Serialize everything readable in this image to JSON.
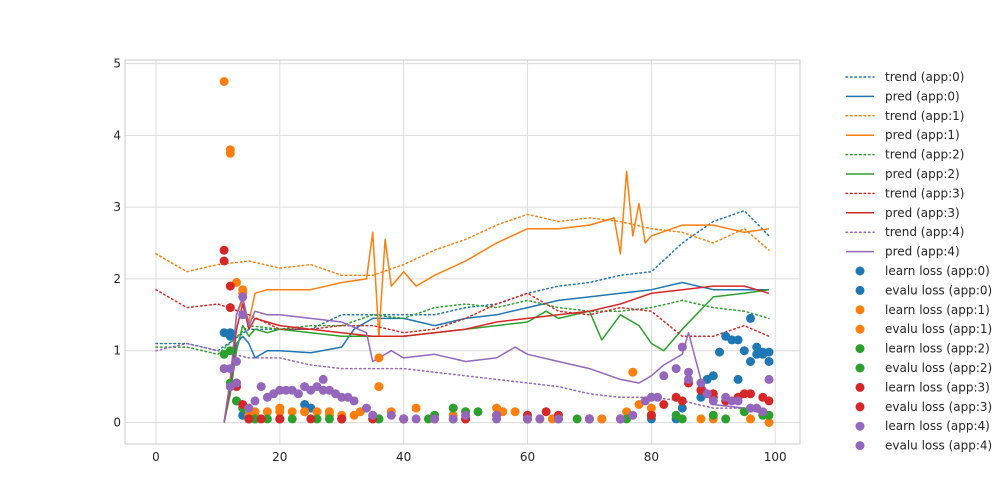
{
  "chart_data": {
    "type": "line",
    "title": "",
    "xlabel": "",
    "ylabel": "",
    "xlim": [
      -5,
      104
    ],
    "ylim": [
      -0.3,
      5.05
    ],
    "x_ticks": [
      0,
      20,
      40,
      60,
      80,
      100
    ],
    "y_ticks": [
      0,
      1,
      2,
      3,
      4,
      5
    ],
    "grid": true,
    "legend_position": "outside-right",
    "series": [
      {
        "name": "trend (app:0)",
        "kind": "line",
        "style": "dotted",
        "color": "#1f77b4",
        "x": [
          0,
          5,
          10,
          15,
          20,
          25,
          30,
          35,
          40,
          45,
          50,
          55,
          60,
          65,
          70,
          75,
          80,
          85,
          90,
          95,
          99
        ],
        "y": [
          1.1,
          1.1,
          1.0,
          1.3,
          1.3,
          1.3,
          1.5,
          1.5,
          1.5,
          1.5,
          1.6,
          1.65,
          1.8,
          1.9,
          1.95,
          2.05,
          2.1,
          2.5,
          2.8,
          2.95,
          2.6
        ]
      },
      {
        "name": "pred (app:0)",
        "kind": "line",
        "style": "solid",
        "color": "#1f77b4",
        "x": [
          11,
          12,
          13,
          14,
          15,
          16,
          18,
          20,
          25,
          30,
          32,
          35,
          40,
          45,
          50,
          55,
          60,
          65,
          70,
          75,
          80,
          85,
          90,
          95,
          99
        ],
        "y": [
          0,
          0.5,
          1.1,
          1.2,
          1.1,
          0.9,
          1.0,
          1.0,
          0.97,
          1.05,
          1.3,
          1.45,
          1.45,
          1.35,
          1.45,
          1.5,
          1.6,
          1.7,
          1.75,
          1.8,
          1.85,
          1.95,
          1.85,
          1.85,
          1.85
        ]
      },
      {
        "name": "trend (app:1)",
        "kind": "line",
        "style": "dotted",
        "color": "#ff7f0e",
        "x": [
          0,
          5,
          10,
          15,
          20,
          25,
          30,
          35,
          40,
          45,
          50,
          55,
          60,
          65,
          70,
          75,
          80,
          85,
          90,
          95,
          99
        ],
        "y": [
          2.35,
          2.1,
          2.2,
          2.25,
          2.15,
          2.2,
          2.05,
          2.05,
          2.2,
          2.4,
          2.55,
          2.75,
          2.9,
          2.8,
          2.85,
          2.8,
          2.7,
          2.65,
          2.5,
          2.7,
          2.4
        ]
      },
      {
        "name": "pred (app:1)",
        "kind": "line",
        "style": "solid",
        "color": "#ff7f0e",
        "x": [
          11,
          12,
          13,
          14,
          15,
          16,
          18,
          20,
          25,
          30,
          34,
          35,
          36,
          37,
          38,
          40,
          42,
          45,
          50,
          55,
          60,
          65,
          70,
          74,
          75,
          76,
          77,
          78,
          79,
          80,
          85,
          90,
          95,
          99
        ],
        "y": [
          0,
          0.6,
          1.5,
          1.7,
          1.4,
          1.8,
          1.85,
          1.85,
          1.85,
          1.95,
          2.0,
          2.65,
          1.2,
          2.55,
          1.9,
          2.1,
          1.9,
          2.05,
          2.25,
          2.5,
          2.7,
          2.7,
          2.75,
          2.85,
          2.35,
          3.5,
          2.6,
          3.05,
          2.5,
          2.6,
          2.75,
          2.75,
          2.65,
          2.7
        ]
      },
      {
        "name": "trend (app:2)",
        "kind": "line",
        "style": "dotted",
        "color": "#2ca02c",
        "x": [
          0,
          5,
          10,
          15,
          20,
          25,
          30,
          35,
          40,
          45,
          50,
          55,
          60,
          65,
          70,
          75,
          80,
          85,
          90,
          95,
          99
        ],
        "y": [
          1.05,
          1.05,
          0.95,
          1.35,
          1.3,
          1.35,
          1.35,
          1.5,
          1.45,
          1.6,
          1.65,
          1.6,
          1.7,
          1.6,
          1.55,
          1.55,
          1.6,
          1.7,
          1.6,
          1.55,
          1.45
        ]
      },
      {
        "name": "pred (app:2)",
        "kind": "line",
        "style": "solid",
        "color": "#2ca02c",
        "x": [
          11,
          12,
          13,
          14,
          15,
          16,
          18,
          20,
          25,
          30,
          35,
          40,
          45,
          50,
          55,
          60,
          63,
          65,
          70,
          72,
          75,
          78,
          80,
          82,
          85,
          90,
          95,
          99
        ],
        "y": [
          0,
          0.4,
          1.0,
          1.35,
          1.2,
          1.3,
          1.25,
          1.3,
          1.25,
          1.2,
          1.2,
          1.2,
          1.25,
          1.3,
          1.35,
          1.4,
          1.55,
          1.45,
          1.55,
          1.15,
          1.5,
          1.35,
          1.1,
          1.0,
          1.3,
          1.75,
          1.8,
          1.85
        ]
      },
      {
        "name": "trend (app:3)",
        "kind": "line",
        "style": "dotted",
        "color": "#d62728",
        "x": [
          0,
          5,
          10,
          15,
          20,
          25,
          30,
          35,
          40,
          45,
          50,
          55,
          60,
          65,
          70,
          75,
          80,
          85,
          90,
          95,
          99
        ],
        "y": [
          1.85,
          1.6,
          1.65,
          1.5,
          1.3,
          1.3,
          1.35,
          1.35,
          1.25,
          1.3,
          1.45,
          1.65,
          1.8,
          1.55,
          1.5,
          1.6,
          1.55,
          1.2,
          1.2,
          1.35,
          1.2
        ]
      },
      {
        "name": "pred (app:3)",
        "kind": "line",
        "style": "solid",
        "color": "#d62728",
        "x": [
          11,
          12,
          13,
          14,
          15,
          16,
          18,
          20,
          25,
          30,
          35,
          40,
          45,
          50,
          55,
          60,
          65,
          70,
          75,
          80,
          85,
          90,
          95,
          99
        ],
        "y": [
          0,
          0.5,
          1.3,
          1.65,
          1.3,
          1.45,
          1.4,
          1.35,
          1.3,
          1.25,
          1.2,
          1.2,
          1.25,
          1.3,
          1.4,
          1.45,
          1.5,
          1.55,
          1.65,
          1.8,
          1.85,
          1.9,
          1.9,
          1.8
        ]
      },
      {
        "name": "trend (app:4)",
        "kind": "line",
        "style": "dotted",
        "color": "#9467bd",
        "x": [
          0,
          5,
          10,
          15,
          20,
          25,
          30,
          35,
          40,
          45,
          50,
          55,
          60,
          65,
          70,
          75,
          80,
          85,
          90,
          95,
          99
        ],
        "y": [
          1.0,
          1.1,
          1.0,
          0.9,
          0.9,
          0.8,
          0.75,
          0.75,
          0.75,
          0.7,
          0.65,
          0.6,
          0.55,
          0.5,
          0.4,
          0.35,
          0.35,
          0.3,
          0.2,
          0.2,
          0.15
        ]
      },
      {
        "name": "pred (app:4)",
        "kind": "line",
        "style": "solid",
        "color": "#9467bd",
        "x": [
          11,
          12,
          13,
          14,
          15,
          16,
          18,
          20,
          25,
          30,
          34,
          35,
          38,
          40,
          45,
          50,
          55,
          58,
          60,
          65,
          70,
          75,
          78,
          80,
          82,
          85,
          86,
          88,
          90,
          95,
          99
        ],
        "y": [
          0,
          0.6,
          1.5,
          1.75,
          1.35,
          1.55,
          1.5,
          1.5,
          1.45,
          1.4,
          1.25,
          0.85,
          1.0,
          0.9,
          0.95,
          0.85,
          0.9,
          1.05,
          0.95,
          0.85,
          0.75,
          0.6,
          0.55,
          0.65,
          0.8,
          0.95,
          1.25,
          0.6,
          0.25,
          0.2,
          0.1
        ]
      },
      {
        "name": "learn loss (app:0)",
        "kind": "scatter",
        "color": "#1f77b4",
        "x": [
          11,
          12,
          14,
          16,
          20,
          25,
          30,
          40,
          50,
          60,
          70,
          80,
          85,
          88,
          89,
          90,
          91,
          92,
          93,
          94,
          95,
          96,
          97,
          98,
          99
        ],
        "y": [
          1.25,
          1.2,
          0.1,
          0.05,
          0.05,
          0.2,
          0.05,
          0.05,
          0.05,
          0.05,
          0.05,
          0.05,
          0.2,
          0.35,
          0.6,
          0.65,
          0.98,
          1.2,
          1.15,
          1.15,
          1.0,
          1.45,
          0.95,
          0.98,
          0.85
        ]
      },
      {
        "name": "evalu loss (app:0)",
        "kind": "scatter",
        "color": "#1f77b4",
        "x": [
          12,
          13,
          15,
          24,
          36,
          48,
          60,
          72,
          84,
          94,
          96,
          97,
          98,
          99
        ],
        "y": [
          1.25,
          0.3,
          0.05,
          0.25,
          0.05,
          0.05,
          0.05,
          0.05,
          0.05,
          0.6,
          0.85,
          1.05,
          0.95,
          0.98
        ]
      },
      {
        "name": "learn loss (app:1)",
        "kind": "scatter",
        "color": "#ff7f0e",
        "x": [
          11,
          12,
          13,
          14,
          15,
          16,
          18,
          20,
          22,
          24,
          26,
          28,
          30,
          33,
          35,
          36,
          38,
          42,
          50,
          55,
          58,
          62,
          70,
          77,
          78,
          80,
          90,
          99
        ],
        "y": [
          4.75,
          3.8,
          1.95,
          1.85,
          0.1,
          0.15,
          0.15,
          0.15,
          0.15,
          0.15,
          0.15,
          0.15,
          0.1,
          0.15,
          0.1,
          0.5,
          0.15,
          0.2,
          0.15,
          0.2,
          0.15,
          0.05,
          0.05,
          0.7,
          0.25,
          0.1,
          0.05,
          0.0
        ]
      },
      {
        "name": "evalu loss (app:1)",
        "kind": "scatter",
        "color": "#ff7f0e",
        "x": [
          12,
          14,
          16,
          20,
          24,
          28,
          32,
          36,
          40,
          48,
          56,
          64,
          72,
          76,
          80,
          88,
          96
        ],
        "y": [
          3.75,
          1.8,
          0.1,
          0.2,
          0.15,
          0.1,
          0.1,
          0.9,
          0.05,
          0.1,
          0.15,
          0.05,
          0.05,
          0.15,
          0.2,
          0.05,
          0.05
        ]
      },
      {
        "name": "learn loss (app:2)",
        "kind": "scatter",
        "color": "#2ca02c",
        "x": [
          11,
          12,
          13,
          15,
          18,
          22,
          26,
          30,
          35,
          40,
          45,
          48,
          50,
          55,
          60,
          65,
          70,
          75,
          80,
          85,
          90,
          95,
          99
        ],
        "y": [
          0.95,
          0.55,
          0.3,
          0.05,
          0.05,
          0.05,
          0.05,
          0.05,
          0.05,
          0.05,
          0.1,
          0.2,
          0.15,
          0.1,
          0.05,
          0.05,
          0.05,
          0.05,
          0.1,
          0.05,
          0.1,
          0.15,
          0.1
        ]
      },
      {
        "name": "evalu loss (app:2)",
        "kind": "scatter",
        "color": "#2ca02c",
        "x": [
          12,
          14,
          16,
          20,
          28,
          36,
          44,
          52,
          60,
          68,
          76,
          84,
          92,
          98
        ],
        "y": [
          1.0,
          0.2,
          0.05,
          0.05,
          0.05,
          0.05,
          0.05,
          0.15,
          0.05,
          0.05,
          0.05,
          0.1,
          0.05,
          0.1
        ]
      },
      {
        "name": "learn loss (app:3)",
        "kind": "scatter",
        "color": "#d62728",
        "x": [
          11,
          12,
          13,
          14,
          15,
          17,
          20,
          25,
          30,
          35,
          40,
          45,
          50,
          55,
          60,
          63,
          65,
          70,
          75,
          80,
          82,
          84,
          86,
          88,
          90,
          92,
          94,
          96,
          98
        ],
        "y": [
          2.4,
          1.9,
          0.55,
          0.25,
          0.05,
          0.05,
          0.05,
          0.05,
          0.05,
          0.05,
          0.05,
          0.05,
          0.05,
          0.1,
          0.1,
          0.15,
          0.1,
          0.05,
          0.05,
          0.1,
          0.25,
          0.35,
          0.55,
          0.45,
          0.4,
          0.3,
          0.35,
          0.4,
          0.35
        ]
      },
      {
        "name": "evalu loss (app:3)",
        "kind": "scatter",
        "color": "#d62728",
        "x": [
          11,
          12,
          13,
          15,
          20,
          30,
          40,
          50,
          60,
          70,
          80,
          85,
          90,
          95,
          99
        ],
        "y": [
          2.25,
          1.6,
          0.5,
          0.05,
          0.05,
          0.05,
          0.05,
          0.05,
          0.05,
          0.05,
          0.1,
          0.3,
          0.35,
          0.4,
          0.3
        ]
      },
      {
        "name": "learn loss (app:4)",
        "kind": "scatter",
        "color": "#9467bd",
        "x": [
          11,
          12,
          13,
          14,
          16,
          18,
          20,
          22,
          24,
          26,
          27,
          28,
          30,
          32,
          35,
          40,
          45,
          50,
          55,
          60,
          65,
          70,
          75,
          79,
          80,
          82,
          84,
          85,
          86,
          88,
          90,
          92,
          94,
          96,
          98,
          99
        ],
        "y": [
          0.75,
          0.5,
          0.85,
          1.75,
          0.3,
          0.35,
          0.45,
          0.45,
          0.5,
          0.5,
          0.6,
          0.45,
          0.35,
          0.3,
          0.1,
          0.05,
          0.05,
          0.1,
          0.1,
          0.05,
          0.05,
          0.05,
          0.05,
          0.3,
          0.35,
          0.65,
          0.75,
          1.05,
          0.6,
          0.55,
          0.3,
          0.35,
          0.3,
          0.2,
          0.15,
          0.6
        ]
      },
      {
        "name": "evalu loss (app:4)",
        "kind": "scatter",
        "color": "#9467bd",
        "x": [
          12,
          13,
          14,
          15,
          17,
          19,
          21,
          23,
          25,
          27,
          29,
          31,
          34,
          38,
          42,
          48,
          55,
          62,
          70,
          77,
          81,
          86,
          89,
          93,
          97
        ],
        "y": [
          0.75,
          0.55,
          1.5,
          0.2,
          0.5,
          0.4,
          0.45,
          0.4,
          0.45,
          0.45,
          0.4,
          0.35,
          0.2,
          0.1,
          0.05,
          0.05,
          0.05,
          0.05,
          0.05,
          0.1,
          0.35,
          0.7,
          0.4,
          0.3,
          0.2
        ]
      }
    ]
  }
}
